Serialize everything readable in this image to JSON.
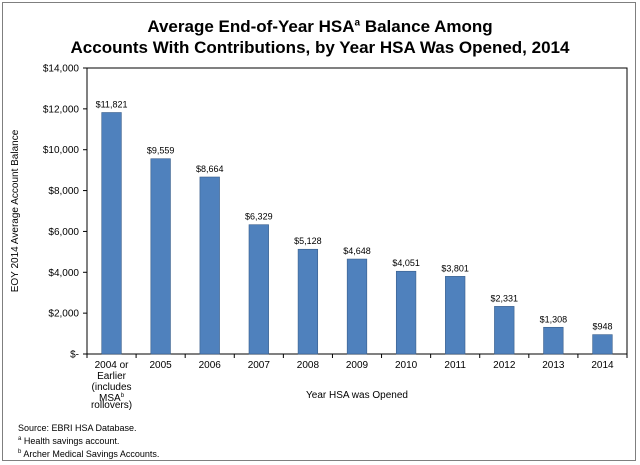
{
  "chart_data": {
    "type": "bar",
    "title_line1_pre": "Average End-of-Year HSA",
    "title_line1_sup": "a",
    "title_line1_post": " Balance Among",
    "title_line2": "Accounts With Contributions, by Year HSA Was Opened, 2014",
    "xlabel": "Year HSA was Opened",
    "ylabel": "EOY 2014 Average Account Balance",
    "ylim": [
      0,
      14000
    ],
    "yticks": [
      0,
      2000,
      4000,
      6000,
      8000,
      10000,
      12000,
      14000
    ],
    "ytick_labels": [
      "$-",
      "$2,000",
      "$4,000",
      "$6,000",
      "$8,000",
      "$10,000",
      "$12,000",
      "$14,000"
    ],
    "categories": [
      [
        "2004 or",
        "Earlier",
        "(includes",
        "MSA",
        "rollovers)"
      ],
      [
        "2005"
      ],
      [
        "2006"
      ],
      [
        "2007"
      ],
      [
        "2008"
      ],
      [
        "2009"
      ],
      [
        "2010"
      ],
      [
        "2011"
      ],
      [
        "2012"
      ],
      [
        "2013"
      ],
      [
        "2014"
      ]
    ],
    "category_sup": "b",
    "values": [
      11821,
      9559,
      8664,
      6329,
      5128,
      4648,
      4051,
      3801,
      2331,
      1308,
      948
    ],
    "value_labels": [
      "$11,821",
      "$9,559",
      "$8,664",
      "$6,329",
      "$5,128",
      "$4,648",
      "$4,051",
      "$3,801",
      "$2,331",
      "$1,308",
      "$948"
    ],
    "bar_color": "#4f81bd",
    "bar_edge_color": "#385d8a"
  },
  "notes": {
    "source": "Source: EBRI HSA Database.",
    "note_a_mark": "a",
    "note_a": " Health savings account.",
    "note_b_mark": "b",
    "note_b": " Archer Medical Savings Accounts."
  }
}
